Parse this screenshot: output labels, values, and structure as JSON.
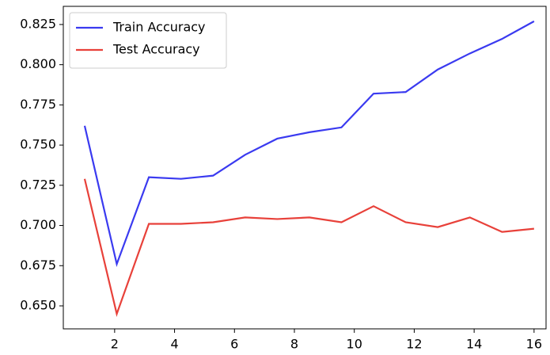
{
  "chart_data": {
    "type": "line",
    "x": [
      1,
      2.0714,
      3.1429,
      4.2143,
      5.2857,
      6.3571,
      7.4286,
      8.5,
      9.5714,
      10.6429,
      11.7143,
      12.7857,
      13.8571,
      14.9286,
      16
    ],
    "series": [
      {
        "name": "Train Accuracy",
        "color": "#3a3af0",
        "values": [
          0.762,
          0.676,
          0.73,
          0.729,
          0.731,
          0.744,
          0.754,
          0.758,
          0.761,
          0.782,
          0.783,
          0.797,
          0.807,
          0.816,
          0.827
        ]
      },
      {
        "name": "Test Accuracy",
        "color": "#e8413a",
        "values": [
          0.729,
          0.645,
          0.701,
          0.701,
          0.702,
          0.705,
          0.704,
          0.705,
          0.702,
          0.712,
          0.702,
          0.699,
          0.705,
          0.696,
          0.698
        ]
      }
    ],
    "xlim": [
      0.287,
      16.4
    ],
    "xticks": [
      2,
      4,
      6,
      8,
      10,
      12,
      14,
      16
    ],
    "ylim": [
      0.6357,
      0.8363
    ],
    "yticks": [
      {
        "value": 0.65,
        "label": "0.650"
      },
      0.675,
      {
        "value": 0.7,
        "label": "0.700"
      },
      0.725,
      {
        "value": 0.75,
        "label": "0.750"
      },
      0.775,
      {
        "value": 0.8,
        "label": "0.800"
      },
      0.825
    ],
    "legend": "upper left",
    "grid": false
  }
}
